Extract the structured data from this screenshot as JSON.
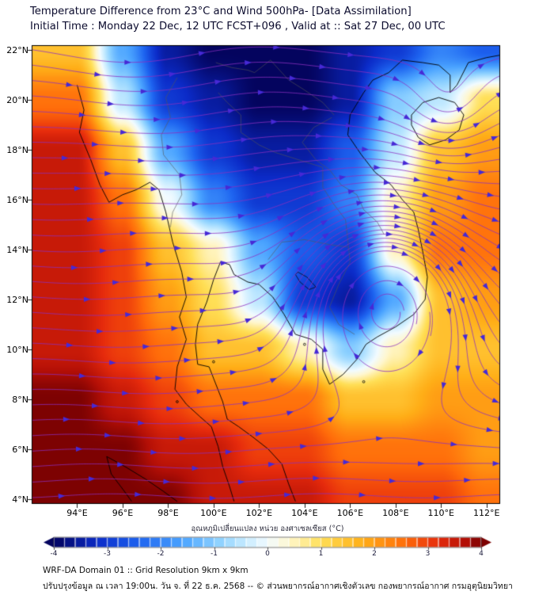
{
  "header": {
    "line1": "Temperature Difference from 23°C and Wind 500hPa- [Data Assimilation]",
    "line2": "Initial Time : Monday 22 Dec, 12 UTC FCST+096 , Valid at ::  Sat 27 Dec, 00 UTC"
  },
  "chart_data": {
    "type": "heatmap",
    "title": "Temperature Difference from 23°C and Wind 500hPa [Data Assimilation]",
    "subtitle": "Initial Time : Monday 22 Dec, 12 UTC FCST+096 , Valid at :: Sat 27 Dec, 00 UTC",
    "units": "°C",
    "domain": {
      "lon": [
        92.0,
        112.6
      ],
      "lat": [
        3.8,
        22.2
      ]
    },
    "x_axis": {
      "label": "longitude",
      "ticks": [
        "94°E",
        "96°E",
        "98°E",
        "100°E",
        "102°E",
        "104°E",
        "106°E",
        "108°E",
        "110°E",
        "112°E"
      ],
      "tick_values": [
        94,
        96,
        98,
        100,
        102,
        104,
        106,
        108,
        110,
        112
      ]
    },
    "y_axis": {
      "label": "latitude",
      "ticks": [
        "4°N",
        "6°N",
        "8°N",
        "10°N",
        "12°N",
        "14°N",
        "16°N",
        "18°N",
        "20°N",
        "22°N"
      ],
      "tick_values": [
        4,
        6,
        8,
        10,
        12,
        14,
        16,
        18,
        20,
        22
      ]
    },
    "grid": {
      "lons": [
        94,
        96,
        98,
        100,
        102,
        104,
        106,
        108,
        110,
        112
      ],
      "lats": [
        22,
        20,
        18,
        16,
        14,
        12,
        10,
        8,
        6,
        4
      ],
      "temp_diff_c": [
        [
          1.5,
          -1.5,
          -3.5,
          -4.0,
          -4.0,
          -4.0,
          -3.5,
          -3.0,
          -2.0,
          -2.5
        ],
        [
          2.5,
          -0.5,
          -3.0,
          -3.5,
          -4.0,
          -4.0,
          -3.5,
          -1.0,
          -0.5,
          1.0
        ],
        [
          3.5,
          1.5,
          -1.5,
          -3.0,
          -3.5,
          -3.5,
          -2.5,
          -0.5,
          1.5,
          2.0
        ],
        [
          3.5,
          2.5,
          0.0,
          -2.0,
          -3.0,
          -3.0,
          -2.0,
          0.5,
          2.0,
          2.5
        ],
        [
          3.5,
          3.0,
          1.5,
          0.5,
          -1.5,
          -2.5,
          -3.0,
          0.5,
          2.5,
          2.5
        ],
        [
          3.5,
          3.0,
          2.0,
          1.0,
          -0.5,
          -3.0,
          -3.5,
          -1.5,
          1.5,
          2.0
        ],
        [
          3.5,
          3.0,
          2.5,
          1.5,
          1.5,
          0.5,
          -1.0,
          0.5,
          1.5,
          1.5
        ],
        [
          4.0,
          3.5,
          3.0,
          2.5,
          2.5,
          2.5,
          1.5,
          1.5,
          2.0,
          2.0
        ],
        [
          4.0,
          4.0,
          3.5,
          3.5,
          3.0,
          3.0,
          2.5,
          2.5,
          2.5,
          2.0
        ],
        [
          4.0,
          4.0,
          4.0,
          3.5,
          3.5,
          3.5,
          3.0,
          3.0,
          3.0,
          2.5
        ]
      ]
    },
    "colormap_stops": [
      [
        -4.0,
        "#04045e"
      ],
      [
        -3.2,
        "#0b2bc8"
      ],
      [
        -2.4,
        "#1e64f0"
      ],
      [
        -1.6,
        "#4aa3ff"
      ],
      [
        -0.9,
        "#8fd2ff"
      ],
      [
        -0.4,
        "#c8ecff"
      ],
      [
        0.0,
        "#f2fbff"
      ],
      [
        0.4,
        "#fff7cf"
      ],
      [
        1.0,
        "#ffdf56"
      ],
      [
        1.8,
        "#ffae17"
      ],
      [
        2.6,
        "#ff6a0a"
      ],
      [
        3.2,
        "#e62b0c"
      ],
      [
        3.7,
        "#b30f06"
      ],
      [
        4.0,
        "#7d0202"
      ]
    ],
    "colorbar": {
      "label": "อุณหภูมิเปลี่ยนแปลง หน่วย องศาเซลเซียส (°C)",
      "min": -4,
      "max": 4,
      "ticks": [
        -4,
        -3,
        -2,
        -1,
        0,
        1,
        2,
        3,
        4
      ],
      "segments": 40
    },
    "wind": {
      "level": "500hPa",
      "description": "westerly flow over the north, anticyclonic eddy near 107.6E 12N, cyclonic wave near 110E 19.5N",
      "base_u": 1.0,
      "wave": {
        "amp": 0.12,
        "k": 0.45,
        "lon0": 96,
        "lat0": 12,
        "ramp": 10
      },
      "ripple": {
        "amp": 0.06,
        "k": 0.7
      },
      "vortices": [
        {
          "lon": 107.6,
          "lat": 12.1,
          "k": 1.7,
          "r": 3.4,
          "dir": 1
        },
        {
          "lon": 110.3,
          "lat": 19.6,
          "k": 0.9,
          "r": 1.9,
          "dir": -1
        }
      ],
      "seeds": {
        "lon": 91.9,
        "lat_start": 4.05,
        "lat_end": 22.05,
        "step": 0.62
      },
      "loops": {
        "center": [
          107.6,
          11.5
        ],
        "radii": [
          0.6,
          1.2,
          1.9
        ]
      }
    },
    "style": {
      "streamline": "#8b2fc0",
      "arrow": "#4629d6",
      "coast": "#000000",
      "border_line": "#555555",
      "frame": "#000000"
    }
  },
  "map": {
    "coastlines": [
      [
        [
          94.0,
          20.6
        ],
        [
          94.3,
          19.6
        ],
        [
          94.1,
          18.7
        ],
        [
          94.6,
          17.6
        ],
        [
          95.0,
          16.6
        ],
        [
          95.4,
          15.9
        ],
        [
          96.0,
          16.2
        ],
        [
          96.6,
          16.4
        ],
        [
          97.2,
          16.7
        ],
        [
          97.6,
          16.4
        ],
        [
          97.9,
          15.5
        ],
        [
          98.2,
          14.3
        ],
        [
          98.6,
          13.1
        ],
        [
          98.8,
          12.1
        ],
        [
          98.5,
          11.3
        ],
        [
          98.8,
          10.4
        ],
        [
          98.4,
          9.3
        ],
        [
          98.3,
          8.4
        ],
        [
          98.8,
          7.8
        ],
        [
          99.4,
          7.3
        ],
        [
          99.9,
          6.9
        ],
        [
          100.2,
          6.1
        ],
        [
          100.4,
          5.3
        ],
        [
          100.7,
          4.5
        ],
        [
          100.9,
          3.9
        ]
      ],
      [
        [
          103.6,
          3.9
        ],
        [
          103.3,
          4.6
        ],
        [
          103.0,
          5.4
        ],
        [
          102.4,
          6.0
        ],
        [
          101.7,
          6.5
        ],
        [
          101.1,
          6.9
        ],
        [
          100.6,
          7.2
        ],
        [
          100.4,
          7.9
        ],
        [
          100.1,
          8.6
        ],
        [
          99.8,
          9.3
        ],
        [
          99.3,
          9.4
        ],
        [
          99.2,
          10.2
        ],
        [
          99.3,
          11.0
        ],
        [
          99.7,
          11.9
        ],
        [
          100.0,
          12.8
        ],
        [
          100.3,
          13.5
        ],
        [
          100.7,
          13.4
        ],
        [
          100.9,
          13.0
        ],
        [
          101.5,
          12.7
        ],
        [
          102.0,
          12.6
        ],
        [
          102.6,
          12.1
        ],
        [
          103.1,
          11.4
        ],
        [
          103.6,
          10.6
        ],
        [
          104.3,
          10.4
        ],
        [
          104.8,
          10.0
        ],
        [
          104.8,
          9.2
        ],
        [
          105.1,
          8.6
        ],
        [
          105.7,
          9.0
        ],
        [
          106.3,
          9.6
        ],
        [
          106.7,
          10.2
        ],
        [
          107.2,
          10.5
        ],
        [
          108.0,
          10.9
        ],
        [
          108.8,
          11.4
        ],
        [
          109.3,
          12.0
        ],
        [
          109.4,
          12.9
        ],
        [
          109.2,
          13.9
        ],
        [
          109.0,
          14.8
        ],
        [
          108.8,
          15.5
        ],
        [
          108.3,
          16.0
        ],
        [
          107.8,
          16.6
        ],
        [
          107.1,
          17.1
        ],
        [
          106.5,
          17.8
        ],
        [
          105.9,
          18.6
        ],
        [
          106.0,
          19.4
        ],
        [
          106.6,
          20.3
        ],
        [
          107.0,
          20.8
        ],
        [
          107.7,
          21.1
        ],
        [
          108.3,
          21.6
        ],
        [
          109.2,
          21.5
        ],
        [
          109.9,
          21.4
        ],
        [
          110.4,
          21.0
        ],
        [
          110.4,
          20.3
        ],
        [
          110.7,
          20.6
        ],
        [
          111.2,
          21.5
        ],
        [
          112.0,
          21.7
        ],
        [
          112.6,
          21.8
        ]
      ],
      [
        [
          108.7,
          19.4
        ],
        [
          109.2,
          19.9
        ],
        [
          109.9,
          20.1
        ],
        [
          110.6,
          19.9
        ],
        [
          111.0,
          19.4
        ],
        [
          110.8,
          18.8
        ],
        [
          110.2,
          18.4
        ],
        [
          109.5,
          18.2
        ],
        [
          109.0,
          18.5
        ],
        [
          108.7,
          19.0
        ],
        [
          108.7,
          19.4
        ]
      ],
      [
        [
          95.3,
          5.7
        ],
        [
          96.1,
          5.3
        ],
        [
          97.0,
          4.8
        ],
        [
          97.8,
          4.3
        ],
        [
          98.4,
          3.9
        ]
      ],
      [
        [
          95.3,
          5.7
        ],
        [
          95.5,
          5.0
        ],
        [
          96.0,
          4.4
        ],
        [
          96.4,
          3.9
        ]
      ]
    ],
    "borders": [
      [
        [
          100.2,
          20.3
        ],
        [
          100.6,
          19.9
        ],
        [
          101.2,
          19.4
        ],
        [
          101.2,
          18.7
        ],
        [
          102.0,
          18.2
        ],
        [
          102.7,
          17.9
        ],
        [
          103.4,
          17.7
        ],
        [
          104.1,
          17.5
        ],
        [
          104.8,
          17.3
        ],
        [
          104.8,
          16.5
        ],
        [
          105.3,
          15.8
        ],
        [
          105.8,
          15.2
        ],
        [
          105.9,
          14.4
        ],
        [
          106.0,
          13.5
        ],
        [
          105.5,
          12.6
        ],
        [
          105.1,
          11.7
        ],
        [
          105.5,
          11.0
        ],
        [
          106.2,
          10.6
        ]
      ],
      [
        [
          98.4,
          20.9
        ],
        [
          97.9,
          20.1
        ],
        [
          98.1,
          19.3
        ],
        [
          97.7,
          18.6
        ],
        [
          97.8,
          17.8
        ],
        [
          98.5,
          17.0
        ],
        [
          98.6,
          16.2
        ],
        [
          98.2,
          15.5
        ],
        [
          98.1,
          14.9
        ]
      ],
      [
        [
          100.1,
          21.5
        ],
        [
          100.8,
          21.3
        ],
        [
          101.5,
          21.2
        ],
        [
          101.8,
          21.1
        ],
        [
          102.5,
          21.6
        ],
        [
          103.3,
          20.8
        ],
        [
          104.0,
          20.4
        ],
        [
          104.8,
          19.9
        ],
        [
          105.3,
          19.4
        ]
      ],
      [
        [
          105.2,
          19.3
        ],
        [
          104.4,
          18.9
        ],
        [
          103.9,
          18.3
        ],
        [
          104.5,
          17.6
        ],
        [
          105.1,
          17.2
        ],
        [
          105.6,
          16.6
        ],
        [
          106.3,
          16.2
        ],
        [
          106.6,
          15.6
        ],
        [
          107.2,
          15.1
        ],
        [
          107.5,
          14.6
        ]
      ],
      [
        [
          102.4,
          13.6
        ],
        [
          103.0,
          14.3
        ],
        [
          104.0,
          14.4
        ],
        [
          105.1,
          14.2
        ],
        [
          105.9,
          14.1
        ]
      ]
    ],
    "lakes": [
      [
        [
          103.7,
          13.1
        ],
        [
          104.1,
          12.9
        ],
        [
          104.5,
          12.5
        ],
        [
          104.2,
          12.4
        ],
        [
          103.8,
          12.7
        ],
        [
          103.6,
          13.0
        ],
        [
          103.7,
          13.1
        ]
      ]
    ],
    "islands": [
      [
        100.0,
        9.5
      ],
      [
        104.0,
        10.2
      ],
      [
        106.6,
        8.7
      ],
      [
        98.4,
        7.9
      ]
    ]
  },
  "footer": {
    "line1": "WRF-DA Domain 01 :: Grid Resolution 9km x 9km",
    "line2": "ปรับปรุงข้อมูล ณ เวลา 19:00น. วัน จ. ที่ 22 ธ.ค. 2568 -- © ส่วนพยากรณ์อากาศเชิงตัวเลข กองพยากรณ์อากาศ กรมอุตุนิยมวิทยา"
  }
}
